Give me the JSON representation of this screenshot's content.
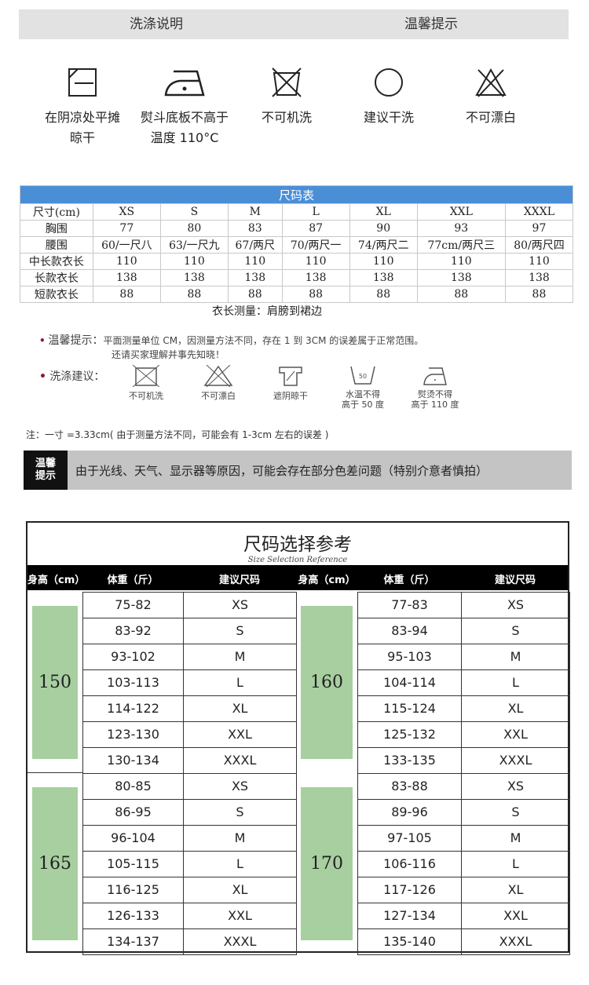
{
  "header": {
    "left": "洗涤说明",
    "right": "温馨提示"
  },
  "care_icons": [
    {
      "icon": "line-dry-shade-icon",
      "label": "在阴凉处平摊\n晾干"
    },
    {
      "icon": "iron-low-icon",
      "label": "熨斗底板不高于\n温度 110°C"
    },
    {
      "icon": "no-machine-wash-icon",
      "label": "不可机洗"
    },
    {
      "icon": "dry-clean-icon",
      "label": "建议干洗"
    },
    {
      "icon": "no-bleach-icon",
      "label": "不可漂白"
    }
  ],
  "size_table": {
    "title": "尺码表",
    "rows": [
      [
        "尺寸(cm)",
        "XS",
        "S",
        "M",
        "L",
        "XL",
        "XXL",
        "XXXL"
      ],
      [
        "胸围",
        "77",
        "80",
        "83",
        "87",
        "90",
        "93",
        "97"
      ],
      [
        "腰围",
        "60/一尺八",
        "63/一尺九",
        "67/两尺",
        "70/两尺一",
        "74/两尺二",
        "77cm/两尺三",
        "80/两尺四"
      ],
      [
        "中长款衣长",
        "110",
        "110",
        "110",
        "110",
        "110",
        "110",
        "110"
      ],
      [
        "长款衣长",
        "138",
        "138",
        "138",
        "138",
        "138",
        "138",
        "138"
      ],
      [
        "短款衣长",
        "88",
        "88",
        "88",
        "88",
        "88",
        "88",
        "88"
      ]
    ],
    "note": "衣长测量：肩膀到裙边"
  },
  "tips": {
    "label": "温馨提示：",
    "line1": "平面测量单位 CM，因测量方法不同，存在 1 到 3CM 的误差属于正常范围。",
    "line2": "还请买家理解并事先知晓！"
  },
  "wash": {
    "label": "洗涤建议：",
    "items": [
      {
        "icon": "no-machine-wash-icon",
        "label": "不可机洗"
      },
      {
        "icon": "no-bleach-icon",
        "label": "不可漂白"
      },
      {
        "icon": "shade-dry-icon",
        "label": "遮阴晾干"
      },
      {
        "icon": "wash-50-icon",
        "label": "水温不得\n高于 50 度"
      },
      {
        "icon": "iron-110-icon",
        "label": "熨烫不得\n高于 110 度"
      }
    ]
  },
  "note2": "注：一寸 =3.33cm( 由于测量方法不同，可能会有 1-3cm 左右的误差 )",
  "warm": {
    "key": "温馨\n提示",
    "text": "由于光线、天气、显示器等原因，可能会存在部分色差问题（特别介意者慎拍）"
  },
  "reference": {
    "title": "尺码选择参考",
    "subtitle": "Size Selection Reference",
    "headers": [
      "身高（cm）",
      "体重（斤）",
      "建议尺码",
      "身高（cm）",
      "体重（斤）",
      "建议尺码"
    ],
    "sizes": [
      "XS",
      "S",
      "M",
      "L",
      "XL",
      "XXL",
      "XXXL"
    ],
    "groups": [
      {
        "height": "150",
        "weights": [
          "75-82",
          "83-92",
          "93-102",
          "103-113",
          "114-122",
          "123-130",
          "130-134"
        ]
      },
      {
        "height": "160",
        "weights": [
          "77-83",
          "83-94",
          "95-103",
          "104-114",
          "115-124",
          "125-132",
          "133-135"
        ]
      },
      {
        "height": "165",
        "weights": [
          "80-85",
          "86-95",
          "96-104",
          "105-115",
          "116-125",
          "126-133",
          "134-137"
        ]
      },
      {
        "height": "170",
        "weights": [
          "83-88",
          "89-96",
          "97-105",
          "106-116",
          "117-126",
          "127-134",
          "135-140"
        ]
      }
    ],
    "accent": "#a7cfa0"
  }
}
